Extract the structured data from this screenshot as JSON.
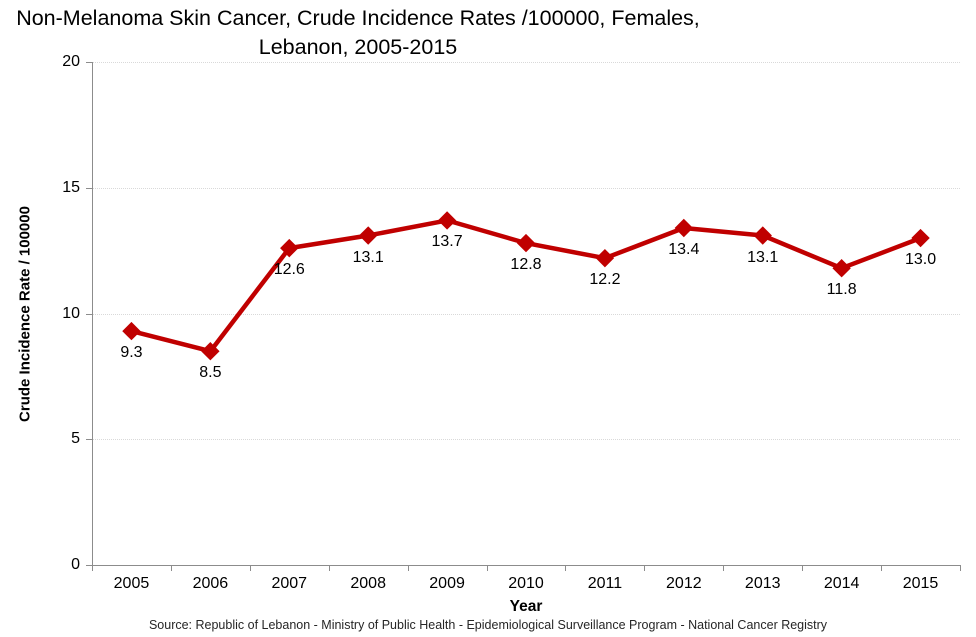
{
  "chart_data": {
    "type": "line",
    "title": "Non-Melanoma Skin Cancer, Crude Incidence Rates /100000, Females, Lebanon, 2005-2015",
    "title_lines": [
      "Non-Melanoma Skin Cancer, Crude Incidence Rates /100000, Females,",
      "Lebanon, 2005-2015"
    ],
    "categories": [
      "2005",
      "2006",
      "2007",
      "2008",
      "2009",
      "2010",
      "2011",
      "2012",
      "2013",
      "2014",
      "2015"
    ],
    "values": [
      9.3,
      8.5,
      12.6,
      13.1,
      13.7,
      12.8,
      12.2,
      13.4,
      13.1,
      11.8,
      13.0
    ],
    "data_labels": [
      "9.3",
      "8.5",
      "12.6",
      "13.1",
      "13.7",
      "12.8",
      "12.2",
      "13.4",
      "13.1",
      "11.8",
      "13.0"
    ],
    "xlabel": "Year",
    "ylabel": "Crude Incidence Rate / 100000",
    "ylim": [
      0,
      20
    ],
    "yticks": [
      0,
      5,
      10,
      15,
      20
    ],
    "grid": "horizontal-dotted",
    "legend": "none",
    "marker": "diamond"
  },
  "source_note": "Source: Republic of Lebanon - Ministry of Public Health - Epidemiological Surveillance Program - National Cancer Registry",
  "colors": {
    "line": "#C00000",
    "axis": "#8C8C8C",
    "gridline": "#D9D9D9",
    "text": "#000000",
    "background": "#FFFFFF"
  }
}
